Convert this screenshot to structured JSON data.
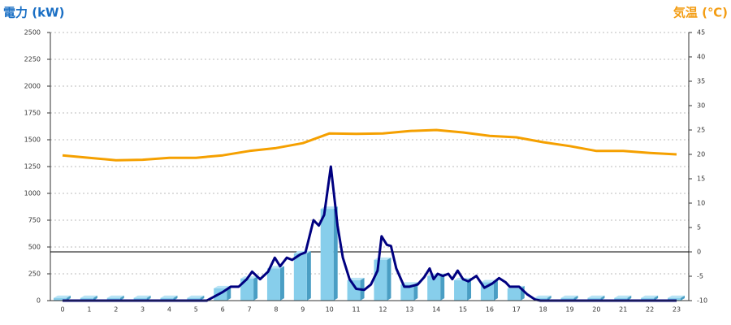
{
  "chart_data": {
    "type": "combo",
    "y_label": "電力 (kW)",
    "y2_label": "気温 (℃)",
    "categories": [
      "0",
      "1",
      "2",
      "3",
      "4",
      "5",
      "6",
      "7",
      "8",
      "9",
      "10",
      "11",
      "12",
      "13",
      "14",
      "15",
      "16",
      "17",
      "18",
      "19",
      "20",
      "21",
      "22",
      "23"
    ],
    "ylim": [
      0,
      2500
    ],
    "yticks": [
      0,
      250,
      500,
      750,
      1000,
      1250,
      1500,
      1750,
      2000,
      2250,
      2500
    ],
    "y2lim": [
      -10,
      45
    ],
    "y2ticks": [
      -10,
      -5,
      0,
      5,
      10,
      15,
      20,
      25,
      30,
      35,
      40,
      45
    ],
    "y2_reference_line": 0,
    "grid": true,
    "series": [
      {
        "type": "bar",
        "color": "#87ceeb",
        "values": [
          25,
          25,
          25,
          25,
          25,
          25,
          115,
          205,
          300,
          440,
          855,
          190,
          380,
          150,
          230,
          190,
          170,
          115,
          25,
          25,
          25,
          25,
          25,
          25
        ]
      },
      {
        "type": "line",
        "color": "#000080",
        "x": [
          0,
          5.4,
          6,
          6.3,
          6.6,
          6.9,
          7.1,
          7.4,
          7.7,
          7.95,
          8.15,
          8.4,
          8.6,
          8.9,
          9.1,
          9.4,
          9.6,
          9.8,
          10.05,
          10.3,
          10.5,
          10.75,
          11,
          11.3,
          11.55,
          11.8,
          11.95,
          12.15,
          12.3,
          12.5,
          12.8,
          13,
          13.3,
          13.55,
          13.75,
          13.9,
          14.05,
          14.25,
          14.45,
          14.6,
          14.8,
          15,
          15.2,
          15.5,
          15.8,
          16.1,
          16.35,
          16.6,
          16.75,
          17.1,
          17.4,
          17.7,
          17.9,
          23
        ],
        "values": [
          0,
          0,
          80,
          130,
          130,
          200,
          270,
          200,
          270,
          400,
          320,
          400,
          380,
          430,
          450,
          750,
          700,
          800,
          1250,
          700,
          400,
          200,
          110,
          100,
          150,
          280,
          600,
          520,
          510,
          300,
          130,
          130,
          150,
          220,
          300,
          200,
          250,
          230,
          250,
          200,
          280,
          200,
          180,
          230,
          120,
          160,
          210,
          170,
          130,
          130,
          60,
          10,
          0,
          0
        ]
      },
      {
        "type": "line",
        "axis": "y2",
        "color": "#f5a000",
        "values": [
          19.8,
          19.3,
          18.8,
          18.9,
          19.3,
          19.3,
          19.8,
          20.7,
          21.3,
          22.3,
          24.3,
          24.2,
          24.3,
          24.8,
          25,
          24.5,
          23.8,
          23.5,
          22.5,
          21.7,
          20.7,
          20.7,
          20.3,
          20
        ]
      }
    ]
  }
}
